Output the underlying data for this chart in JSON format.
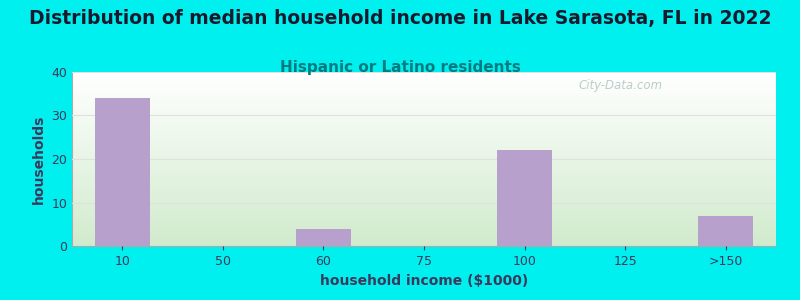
{
  "title": "Distribution of median household income in Lake Sarasota, FL in 2022",
  "subtitle": "Hispanic or Latino residents",
  "xlabel": "household income ($1000)",
  "ylabel": "households",
  "categories": [
    "10",
    "50",
    "60",
    "75",
    "100",
    "125",
    ">150"
  ],
  "values": [
    34,
    0,
    4,
    0,
    22,
    0,
    7
  ],
  "bar_color": "#b8a0cc",
  "background_color": "#00f0f0",
  "plot_bg_top": "#ffffff",
  "plot_bg_bottom": "#d0eacc",
  "ylim": [
    0,
    40
  ],
  "yticks": [
    0,
    10,
    20,
    30,
    40
  ],
  "title_fontsize": 13.5,
  "title_color": "#1a1a2e",
  "subtitle_fontsize": 11,
  "subtitle_color": "#007b80",
  "axis_label_fontsize": 10,
  "axis_label_color": "#3a3a5c",
  "tick_fontsize": 9,
  "tick_color": "#3a3a5c",
  "watermark": "City-Data.com",
  "grid_color": "#e0e0e0"
}
